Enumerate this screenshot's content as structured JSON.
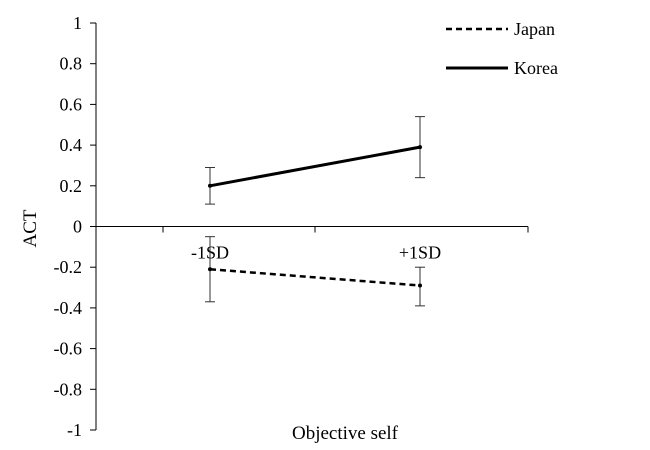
{
  "chart_data": {
    "type": "line",
    "xlabel": "Objective self",
    "ylabel": "ACT",
    "categories": [
      "-1SD",
      "+1SD"
    ],
    "ylim": [
      -1,
      1
    ],
    "yticks": [
      "1",
      "0.8",
      "0.6",
      "0.4",
      "0.2",
      "0",
      "-0.2",
      "-0.4",
      "-0.6",
      "-0.8",
      "-1"
    ],
    "grid": false,
    "legend_position": "top-right",
    "series": [
      {
        "name": "Japan",
        "line_style": "dashed",
        "color": "#000000",
        "values": [
          -0.21,
          -0.29
        ],
        "error_low": [
          -0.37,
          -0.39
        ],
        "error_high": [
          -0.05,
          -0.2
        ]
      },
      {
        "name": "Korea",
        "line_style": "solid",
        "color": "#000000",
        "values": [
          0.2,
          0.39
        ],
        "error_low": [
          0.11,
          0.24
        ],
        "error_high": [
          0.29,
          0.54
        ]
      }
    ]
  }
}
